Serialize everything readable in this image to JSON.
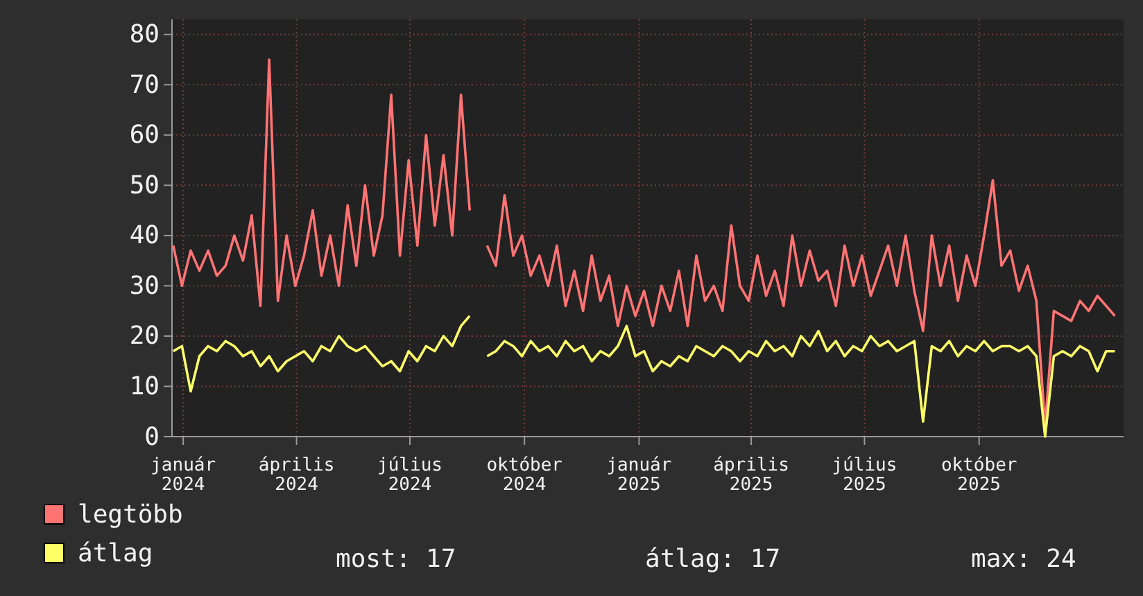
{
  "chart_data": {
    "type": "line",
    "legend": "bottom",
    "grid": true,
    "line_style": "solid",
    "marker": "none",
    "xlim": [
      "2023-12-23",
      "2026-01-25"
    ],
    "xticks": [
      {
        "value": "2024-01-01",
        "label": "január 2024"
      },
      {
        "value": "2024-04-01",
        "label": "április 2024"
      },
      {
        "value": "2024-07-01",
        "label": "július 2024"
      },
      {
        "value": "2024-10-01",
        "label": "október 2024"
      },
      {
        "value": "2025-01-01",
        "label": "január 2025"
      },
      {
        "value": "2025-04-01",
        "label": "április 2025"
      },
      {
        "value": "2025-07-01",
        "label": "július 2025"
      },
      {
        "value": "2025-10-01",
        "label": "október 2025"
      }
    ],
    "ylim": [
      0,
      83
    ],
    "yticks": [
      0,
      10,
      20,
      30,
      40,
      50,
      60,
      70,
      80
    ],
    "x": [
      "2023-12-24",
      "2023-12-31",
      "2024-01-07",
      "2024-01-14",
      "2024-01-21",
      "2024-01-28",
      "2024-02-04",
      "2024-02-11",
      "2024-02-18",
      "2024-02-25",
      "2024-03-03",
      "2024-03-10",
      "2024-03-17",
      "2024-03-24",
      "2024-03-31",
      "2024-04-07",
      "2024-04-14",
      "2024-04-21",
      "2024-04-28",
      "2024-05-05",
      "2024-05-12",
      "2024-05-19",
      "2024-05-26",
      "2024-06-02",
      "2024-06-09",
      "2024-06-16",
      "2024-06-23",
      "2024-06-30",
      "2024-07-07",
      "2024-07-14",
      "2024-07-21",
      "2024-07-28",
      "2024-08-04",
      "2024-08-11",
      "2024-08-18",
      "2024-08-25",
      "2024-09-01",
      "2024-09-08",
      "2024-09-15",
      "2024-09-22",
      "2024-09-29",
      "2024-10-06",
      "2024-10-13",
      "2024-10-20",
      "2024-10-27",
      "2024-11-03",
      "2024-11-10",
      "2024-11-17",
      "2024-11-24",
      "2024-12-01",
      "2024-12-08",
      "2024-12-15",
      "2024-12-22",
      "2024-12-29",
      "2025-01-05",
      "2025-01-12",
      "2025-01-19",
      "2025-01-26",
      "2025-02-02",
      "2025-02-09",
      "2025-02-16",
      "2025-02-23",
      "2025-03-02",
      "2025-03-09",
      "2025-03-16",
      "2025-03-23",
      "2025-03-30",
      "2025-04-06",
      "2025-04-13",
      "2025-04-20",
      "2025-04-27",
      "2025-05-04",
      "2025-05-11",
      "2025-05-18",
      "2025-05-25",
      "2025-06-01",
      "2025-06-08",
      "2025-06-15",
      "2025-06-22",
      "2025-06-29",
      "2025-07-06",
      "2025-07-13",
      "2025-07-20",
      "2025-07-27",
      "2025-08-03",
      "2025-08-10",
      "2025-08-17",
      "2025-08-24",
      "2025-08-31",
      "2025-09-07",
      "2025-09-14",
      "2025-09-21",
      "2025-09-28",
      "2025-10-05",
      "2025-10-12",
      "2025-10-19",
      "2025-10-26",
      "2025-11-02",
      "2025-11-09",
      "2025-11-16",
      "2025-11-23",
      "2025-11-30",
      "2025-12-07",
      "2025-12-14",
      "2025-12-21",
      "2025-12-28",
      "2026-01-04",
      "2026-01-11",
      "2026-01-18"
    ],
    "series": [
      {
        "name": "legtöbb",
        "color": "#ff7373",
        "values": [
          38,
          30,
          37,
          33,
          37,
          32,
          34,
          40,
          35,
          44,
          26,
          75,
          27,
          40,
          30,
          36,
          45,
          32,
          40,
          30,
          46,
          34,
          50,
          36,
          44,
          68,
          36,
          55,
          38,
          60,
          42,
          56,
          40,
          68,
          45,
          null,
          38,
          34,
          48,
          36,
          40,
          32,
          36,
          30,
          38,
          26,
          33,
          25,
          36,
          27,
          32,
          22,
          30,
          24,
          29,
          22,
          30,
          25,
          33,
          22,
          36,
          27,
          30,
          25,
          42,
          30,
          27,
          36,
          28,
          33,
          26,
          40,
          30,
          37,
          31,
          33,
          26,
          38,
          30,
          36,
          28,
          33,
          38,
          30,
          40,
          29,
          21,
          40,
          30,
          38,
          27,
          36,
          30,
          40,
          51,
          34,
          37,
          29,
          34,
          27,
          2,
          25,
          24,
          23,
          27,
          25,
          28,
          26,
          24
        ]
      },
      {
        "name": "átlag",
        "color": "#ffff66",
        "values": [
          17,
          18,
          9,
          16,
          18,
          17,
          19,
          18,
          16,
          17,
          14,
          16,
          13,
          15,
          16,
          17,
          15,
          18,
          17,
          20,
          18,
          17,
          18,
          16,
          14,
          15,
          13,
          17,
          15,
          18,
          17,
          20,
          18,
          22,
          24,
          null,
          16,
          17,
          19,
          18,
          16,
          19,
          17,
          18,
          16,
          19,
          17,
          18,
          15,
          17,
          16,
          18,
          22,
          16,
          17,
          13,
          15,
          14,
          16,
          15,
          18,
          17,
          16,
          18,
          17,
          15,
          17,
          16,
          19,
          17,
          18,
          16,
          20,
          18,
          21,
          17,
          19,
          16,
          18,
          17,
          20,
          18,
          19,
          17,
          18,
          19,
          3,
          18,
          17,
          19,
          16,
          18,
          17,
          19,
          17,
          18,
          18,
          17,
          18,
          16,
          0,
          16,
          17,
          16,
          18,
          17,
          13,
          17,
          17
        ]
      }
    ],
    "annotations": [
      "most: 17",
      "átlag: 17",
      "max: 24"
    ]
  }
}
